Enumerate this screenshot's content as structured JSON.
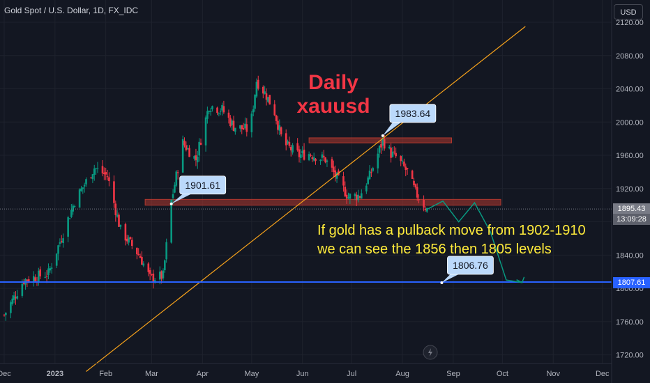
{
  "header": {
    "title": "Gold Spot / U.S. Dollar, 1D, FX_IDC",
    "currency": "USD"
  },
  "price_labels": {
    "current": "1895.43",
    "countdown": "13:09:28",
    "support": "1807.61"
  },
  "colors": {
    "background": "#131722",
    "up": "#089981",
    "down": "#f23645",
    "trendline": "#f7a21b",
    "support": "#2962ff",
    "zone": "#b2382f",
    "callout": "#bbd9fb",
    "annotation": "#ffeb3b",
    "title": "#f23645"
  },
  "chart_data": {
    "type": "candlestick",
    "title": "Daily\nxauusd",
    "y_ticks": [
      "2120.00",
      "2080.00",
      "2040.00",
      "2000.00",
      "1960.00",
      "1920.00",
      "1880.00",
      "1840.00",
      "1800.00",
      "1760.00",
      "1720.00"
    ],
    "x_ticks": [
      "Dec",
      "2023",
      "Feb",
      "Mar",
      "Apr",
      "May",
      "Jun",
      "Jul",
      "Aug",
      "Sep",
      "Oct",
      "Nov",
      "Dec"
    ],
    "ylim": [
      1718,
      2124
    ],
    "callouts": [
      {
        "label": "1901.61",
        "value": 1901.61,
        "date": "2023-03-13"
      },
      {
        "label": "1983.64",
        "value": 1983.64,
        "date": "2023-07-20"
      },
      {
        "label": "1806.76",
        "value": 1806.76,
        "date": "2023-08-25"
      }
    ],
    "horizontal_lines": [
      {
        "name": "current",
        "value": 1895.43
      },
      {
        "name": "support",
        "value": 1807.61
      }
    ],
    "zones": [
      {
        "low": 1975,
        "high": 1981,
        "from": "2023-06-05",
        "to": "2023-08-31"
      },
      {
        "low": 1900,
        "high": 1907,
        "from": "2023-02-25",
        "to": "2023-09-30"
      }
    ],
    "trendline": {
      "from": {
        "date": "2023-01-20",
        "value": 1700
      },
      "to": {
        "date": "2023-10-15",
        "value": 2115
      }
    },
    "projection_path": [
      1895,
      1905,
      1880,
      1903,
      1868,
      1810,
      1807
    ],
    "annotation": "If gold has a pulback move from 1902-1910\nwe can see the 1856 then 1805 levels",
    "waypoints": [
      [
        "2022-12-01",
        1768
      ],
      [
        "2022-12-13",
        1810
      ],
      [
        "2022-12-28",
        1818
      ],
      [
        "2023-01-13",
        1905
      ],
      [
        "2023-01-25",
        1945
      ],
      [
        "2023-02-02",
        1935
      ],
      [
        "2023-02-10",
        1870
      ],
      [
        "2023-02-22",
        1838
      ],
      [
        "2023-02-28",
        1812
      ],
      [
        "2023-03-08",
        1815
      ],
      [
        "2023-03-13",
        1905
      ],
      [
        "2023-03-20",
        1975
      ],
      [
        "2023-03-28",
        1955
      ],
      [
        "2023-04-05",
        2020
      ],
      [
        "2023-04-13",
        2015
      ],
      [
        "2023-04-20",
        1995
      ],
      [
        "2023-04-30",
        1990
      ],
      [
        "2023-05-04",
        2050
      ],
      [
        "2023-05-10",
        2032
      ],
      [
        "2023-05-15",
        2012
      ],
      [
        "2023-05-20",
        1975
      ],
      [
        "2023-05-30",
        1960
      ],
      [
        "2023-06-05",
        1962
      ],
      [
        "2023-06-15",
        1955
      ],
      [
        "2023-06-29",
        1910
      ],
      [
        "2023-07-06",
        1912
      ],
      [
        "2023-07-12",
        1935
      ],
      [
        "2023-07-20",
        1978
      ],
      [
        "2023-07-25",
        1962
      ],
      [
        "2023-07-28",
        1958
      ],
      [
        "2023-08-04",
        1940
      ],
      [
        "2023-08-09",
        1915
      ],
      [
        "2023-08-16",
        1895
      ]
    ]
  }
}
